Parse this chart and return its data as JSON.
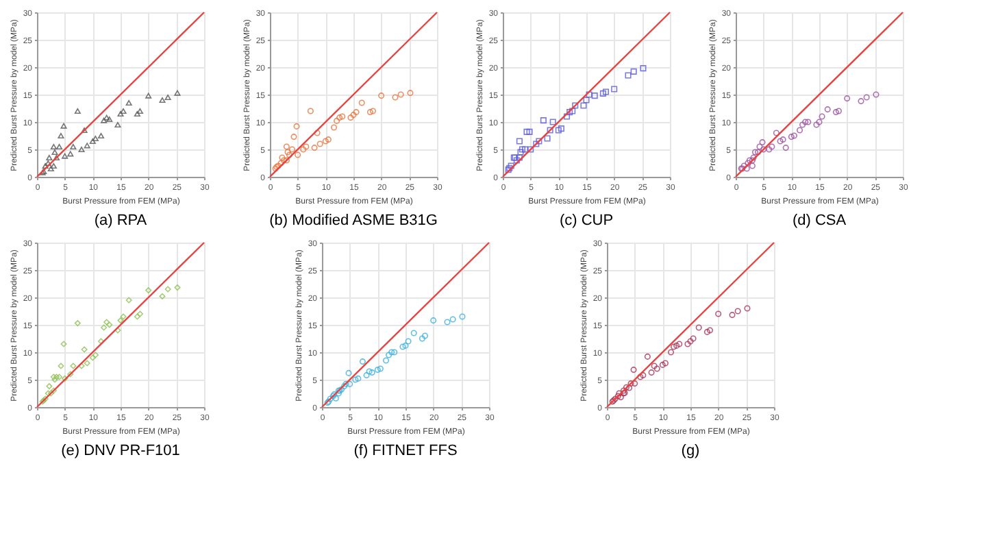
{
  "chart_data": [
    {
      "type": "scatter",
      "title": "(a) RPA",
      "xlabel": "Burst Pressure from FEM (MPa)",
      "ylabel": "Predicted Burst Pressure by model (MPa)",
      "xlim": [
        0,
        30
      ],
      "ylim": [
        0,
        30
      ],
      "xticks": [
        0,
        5,
        10,
        15,
        20,
        25,
        30
      ],
      "yticks": [
        0,
        5,
        10,
        15,
        20,
        25,
        30
      ],
      "grid": true,
      "series": [
        {
          "color": "#555555",
          "marker": "triangle",
          "x": [
            1,
            1.2,
            1.5,
            2,
            2.2,
            2.5,
            3,
            3,
            3.2,
            3.5,
            4,
            4.3,
            4.8,
            5,
            6,
            6.5,
            7.3,
            8,
            8.5,
            9,
            10,
            10.5,
            11.5,
            12,
            12.5,
            13,
            14.5,
            15,
            15.5,
            16.5,
            18,
            18.5,
            20,
            22.5,
            23.5,
            25.2
          ],
          "values": [
            0.8,
            1,
            2,
            2.5,
            3.5,
            1.5,
            2,
            5.5,
            4.5,
            3.5,
            5.5,
            7.5,
            9.3,
            3.8,
            4.2,
            5.5,
            12,
            5,
            8.5,
            5.7,
            6.5,
            7,
            7.5,
            10.3,
            10.8,
            10.5,
            9.5,
            11.5,
            12,
            13.5,
            11.5,
            12,
            14.8,
            14,
            14.5,
            15.3
          ]
        },
        {
          "type": "line",
          "marker": "none",
          "color": "#e8423f",
          "line_style": "solid",
          "x": [
            0,
            30
          ],
          "values": [
            0,
            30
          ]
        }
      ]
    },
    {
      "type": "scatter",
      "title": "(b) Modified ASME B31G",
      "xlabel": "Burst Pressure from FEM (MPa)",
      "ylabel": "Predicted Burst Pressure by model (MPa)",
      "xlim": [
        0,
        30
      ],
      "ylim": [
        0,
        30
      ],
      "xticks": [
        0,
        5,
        10,
        15,
        20,
        25,
        30
      ],
      "yticks": [
        0,
        5,
        10,
        15,
        20,
        25,
        30
      ],
      "grid": true,
      "series": [
        {
          "color": "#e8743b",
          "marker": "circle",
          "x": [
            1,
            1.2,
            1.5,
            2,
            2.2,
            2.5,
            3,
            3,
            3.2,
            3.5,
            4,
            4.3,
            4.8,
            5,
            6,
            6.5,
            7.3,
            8,
            8.5,
            9,
            10,
            10.5,
            11.5,
            12,
            12.5,
            13,
            14.5,
            15,
            15.5,
            16.5,
            18,
            18.5,
            20,
            22.5,
            23.5,
            25.2
          ],
          "values": [
            1.5,
            1.8,
            2,
            2.5,
            3.5,
            3,
            3,
            5.5,
            4.5,
            4,
            5,
            7.3,
            9.2,
            4,
            5,
            5.5,
            12,
            5.3,
            8,
            6,
            6.5,
            6.8,
            9,
            10.2,
            10.8,
            11,
            10.8,
            11.3,
            11.8,
            13.5,
            11.8,
            12,
            14.8,
            14.5,
            15,
            15.3
          ]
        },
        {
          "type": "line",
          "marker": "none",
          "color": "#e8423f",
          "line_style": "solid",
          "x": [
            0,
            30
          ],
          "values": [
            0,
            30
          ]
        }
      ]
    },
    {
      "type": "scatter",
      "title": "(c) CUP",
      "xlabel": "Burst Pressure from FEM (MPa)",
      "ylabel": "Predicted Burst Pressure by model (MPa)",
      "xlim": [
        0,
        30
      ],
      "ylim": [
        0,
        30
      ],
      "xticks": [
        0,
        5,
        10,
        15,
        20,
        25,
        30
      ],
      "yticks": [
        0,
        5,
        10,
        15,
        20,
        25,
        30
      ],
      "grid": true,
      "series": [
        {
          "color": "#5a5ae0",
          "marker": "square",
          "x": [
            1,
            1.2,
            1.5,
            2,
            2.2,
            2.5,
            3,
            3,
            3.2,
            3.5,
            4,
            4.3,
            4.8,
            5,
            6,
            6.5,
            7.3,
            8,
            8.5,
            9,
            10,
            10.5,
            11.5,
            12,
            12.5,
            13,
            14.5,
            15,
            15.5,
            16.5,
            18,
            18.5,
            20,
            22.5,
            23.5,
            25.2
          ],
          "values": [
            1.3,
            1.6,
            2,
            3.5,
            3.5,
            3,
            3.5,
            6.5,
            4.5,
            5,
            5,
            8.2,
            8.2,
            5,
            6,
            6.5,
            10.3,
            7,
            8.5,
            10,
            8.5,
            8.8,
            11,
            11.8,
            12,
            13,
            13,
            14,
            15,
            14.8,
            15.2,
            15.5,
            16,
            18.5,
            19.2,
            19.8
          ]
        },
        {
          "type": "line",
          "marker": "none",
          "color": "#e8423f",
          "line_style": "solid",
          "x": [
            0,
            30
          ],
          "values": [
            0,
            30
          ]
        }
      ]
    },
    {
      "type": "scatter",
      "title": "(d) CSA",
      "xlabel": "Burst Pressure from FEM (MPa)",
      "ylabel": "Predicted Burst Pressure by model (MPa)",
      "xlim": [
        0,
        30
      ],
      "ylim": [
        0,
        30
      ],
      "xticks": [
        0,
        5,
        10,
        15,
        20,
        25,
        30
      ],
      "yticks": [
        0,
        5,
        10,
        15,
        20,
        25,
        30
      ],
      "grid": true,
      "series": [
        {
          "color": "#9a4fa0",
          "marker": "circle",
          "x": [
            1,
            1.2,
            1.5,
            2,
            2.2,
            2.5,
            3,
            3,
            3.2,
            3.5,
            4,
            4.3,
            4.8,
            5,
            6,
            6.5,
            7.3,
            8,
            8.5,
            9,
            10,
            10.5,
            11.5,
            12,
            12.5,
            13,
            14.5,
            15,
            15.5,
            16.5,
            18,
            18.5,
            20,
            22.5,
            23.5,
            25.2
          ],
          "values": [
            1.5,
            1.5,
            2,
            1.5,
            2.5,
            3,
            3,
            2,
            3.5,
            4.5,
            4.5,
            5.5,
            6.3,
            5,
            5,
            5.5,
            8,
            6.5,
            6.8,
            5.3,
            7.3,
            7.5,
            8.5,
            9.5,
            10,
            10,
            9.5,
            10,
            11,
            12.3,
            11.8,
            12,
            14.3,
            13.8,
            14.5,
            15
          ]
        },
        {
          "type": "line",
          "marker": "none",
          "color": "#e8423f",
          "line_style": "solid",
          "x": [
            0,
            30
          ],
          "values": [
            0,
            30
          ]
        }
      ]
    },
    {
      "type": "scatter",
      "title": "(e) DNV PR-F101",
      "xlabel": "Burst Pressure from FEM (MPa)",
      "ylabel": "Predicted Burst Pressure by model (MPa)",
      "xlim": [
        0,
        30
      ],
      "ylim": [
        0,
        30
      ],
      "xticks": [
        0,
        5,
        10,
        15,
        20,
        25,
        30
      ],
      "yticks": [
        0,
        5,
        10,
        15,
        20,
        25,
        30
      ],
      "grid": true,
      "series": [
        {
          "color": "#8cc152",
          "marker": "diamond",
          "x": [
            1,
            1.2,
            1.5,
            2,
            2.2,
            2.5,
            3,
            3,
            3.2,
            3.5,
            4,
            4.3,
            4.8,
            5,
            6,
            6.5,
            7.3,
            8,
            8.5,
            9,
            10,
            10.5,
            11.5,
            12,
            12.5,
            13,
            14.5,
            15,
            15.5,
            16.5,
            18,
            18.5,
            20,
            22.5,
            23.5,
            25.2
          ],
          "values": [
            1,
            1.2,
            1.5,
            2.5,
            3.8,
            2.5,
            3,
            5.5,
            5,
            5.5,
            5.5,
            7.5,
            11.5,
            5.2,
            6,
            7.5,
            15.3,
            7.5,
            10.5,
            8,
            9,
            9.5,
            12,
            14.5,
            15.5,
            15,
            14,
            15.8,
            16.5,
            19.5,
            16.5,
            17,
            21.3,
            20.2,
            21.5,
            21.8
          ]
        },
        {
          "type": "line",
          "marker": "none",
          "color": "#e8423f",
          "line_style": "solid",
          "x": [
            0,
            30
          ],
          "values": [
            0,
            30
          ]
        }
      ]
    },
    {
      "type": "scatter",
      "title": "(f) FITNET FFS",
      "xlabel": "Burst Pressure from FEM (MPa)",
      "ylabel": "Predicted Burst Pressure by model (MPa)",
      "xlim": [
        0,
        30
      ],
      "ylim": [
        0,
        30
      ],
      "xticks": [
        0,
        5,
        10,
        15,
        20,
        25,
        30
      ],
      "yticks": [
        0,
        5,
        10,
        15,
        20,
        25,
        30
      ],
      "grid": true,
      "series": [
        {
          "color": "#3ab0e0",
          "marker": "circle",
          "x": [
            1,
            1.2,
            1.5,
            2,
            2.2,
            2.5,
            3,
            3,
            3.2,
            3.5,
            4,
            4.3,
            4.8,
            5,
            6,
            6.5,
            7.3,
            8,
            8.5,
            9,
            10,
            10.5,
            11.5,
            12,
            12.5,
            13,
            14.5,
            15,
            15.5,
            16.5,
            18,
            18.5,
            20,
            22.5,
            23.5,
            25.2
          ],
          "values": [
            0.8,
            1,
            1.5,
            2,
            2.3,
            1.6,
            2.5,
            3,
            3,
            3.2,
            3.8,
            4.2,
            6.2,
            4.2,
            5,
            5.2,
            8.3,
            5.8,
            6.5,
            6.3,
            6.8,
            7,
            8.5,
            9.5,
            10,
            10,
            11,
            11.2,
            12,
            13.5,
            12.5,
            13,
            15.8,
            15.5,
            16,
            16.5
          ]
        },
        {
          "type": "line",
          "marker": "none",
          "color": "#e8423f",
          "line_style": "solid",
          "x": [
            0,
            30
          ],
          "values": [
            0,
            30
          ]
        }
      ]
    },
    {
      "type": "scatter",
      "title": "(g)",
      "xlabel": "Burst Pressure from FEM (MPa)",
      "ylabel": "Predicted Burst Pressure by model (MPa)",
      "xlim": [
        0,
        30
      ],
      "ylim": [
        0,
        30
      ],
      "xticks": [
        0,
        5,
        10,
        15,
        20,
        25,
        30
      ],
      "yticks": [
        0,
        5,
        10,
        15,
        20,
        25,
        30
      ],
      "grid": true,
      "series": [
        {
          "color": "#a83256",
          "marker": "circle",
          "x": [
            1,
            1.2,
            1.5,
            2,
            2.2,
            2.5,
            3,
            3,
            3.2,
            3.5,
            4,
            4.3,
            4.8,
            5,
            6,
            6.5,
            7.3,
            8,
            8.5,
            9,
            10,
            10.5,
            11.5,
            12,
            12.5,
            13,
            14.5,
            15,
            15.5,
            16.5,
            18,
            18.5,
            20,
            22.5,
            23.5,
            25.2
          ],
          "values": [
            1,
            1.2,
            1.5,
            2,
            2.5,
            1.8,
            2.5,
            3,
            2.6,
            3.6,
            3.5,
            4.3,
            6.8,
            4.3,
            5.5,
            5.8,
            9.2,
            6.3,
            7.5,
            7,
            7.7,
            8,
            10,
            11,
            11.2,
            11.5,
            11.5,
            12,
            12.5,
            14.5,
            13.7,
            14,
            17,
            16.8,
            17.5,
            18
          ]
        },
        {
          "type": "line",
          "marker": "none",
          "color": "#e8423f",
          "line_style": "solid",
          "x": [
            0,
            30
          ],
          "values": [
            0,
            30
          ]
        }
      ]
    }
  ]
}
